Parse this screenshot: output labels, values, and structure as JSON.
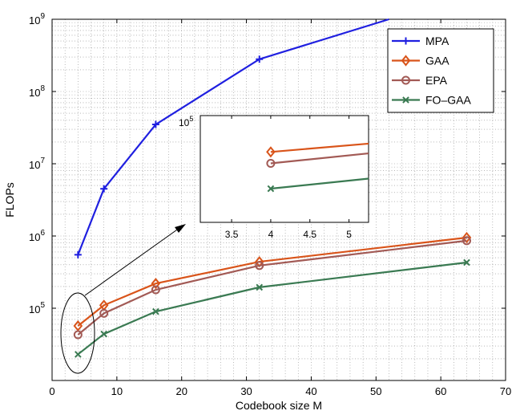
{
  "chart_data": [
    {
      "type": "line",
      "xlabel": "Codebook size M",
      "ylabel": "FLOPs",
      "xlim": [
        0,
        70
      ],
      "ylim": [
        10000,
        1000000000
      ],
      "yscale": "log",
      "x_ticks": [
        "0",
        "10",
        "20",
        "30",
        "40",
        "50",
        "60",
        "70"
      ],
      "y_tick_labels": [
        {
          "base": "10",
          "exp": "5",
          "value": 100000
        },
        {
          "base": "10",
          "exp": "6",
          "value": 1000000
        },
        {
          "base": "10",
          "exp": "7",
          "value": 10000000
        },
        {
          "base": "10",
          "exp": "8",
          "value": 100000000
        },
        {
          "base": "10",
          "exp": "9",
          "value": 1000000000
        }
      ],
      "grid": "dotted major and minor",
      "legend_position": "upper-right",
      "x": [
        4,
        8,
        16,
        32,
        64
      ],
      "series": [
        {
          "name": "MPA",
          "color": "#1f1fe0",
          "marker": "plus",
          "x": [
            4,
            8,
            16,
            32,
            52
          ],
          "values": [
            550000,
            4500000,
            35000000,
            280000000,
            1000000000
          ]
        },
        {
          "name": "GAA",
          "color": "#d9541a",
          "marker": "diamond",
          "x": [
            4,
            8,
            16,
            32,
            64
          ],
          "values": [
            57000,
            110000,
            220000,
            440000,
            950000
          ]
        },
        {
          "name": "EPA",
          "color": "#a25a55",
          "marker": "circle",
          "x": [
            4,
            8,
            16,
            32,
            64
          ],
          "values": [
            43000,
            85000,
            180000,
            390000,
            860000
          ]
        },
        {
          "name": "FO–GAA",
          "color": "#3a7a52",
          "marker": "x",
          "x": [
            4,
            8,
            16,
            32,
            64
          ],
          "values": [
            23000,
            44000,
            90000,
            195000,
            430000
          ]
        }
      ]
    },
    {
      "type": "line",
      "role": "inset zoom",
      "xlim": [
        3.1,
        5.25
      ],
      "x_ticks": [
        "3.5",
        "4",
        "4.5",
        "5"
      ],
      "y_tick_label": {
        "base": "10",
        "exp": "5",
        "value": 100000
      },
      "series": [
        {
          "name": "GAA",
          "x": [
            4,
            5.25
          ],
          "values": [
            57000,
            70000
          ]
        },
        {
          "name": "EPA",
          "x": [
            4,
            5.25
          ],
          "values": [
            43000,
            55000
          ]
        },
        {
          "name": "FO–GAA",
          "x": [
            4,
            5.25
          ],
          "values": [
            23000,
            29500
          ]
        }
      ]
    }
  ]
}
